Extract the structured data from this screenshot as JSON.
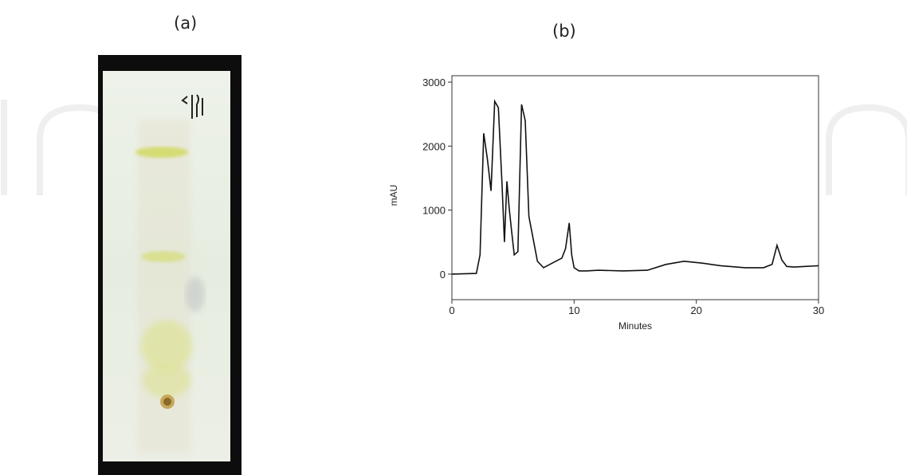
{
  "panels": {
    "a_label": "(a)",
    "b_label": "(b)"
  },
  "colors": {
    "plate_background": "#e9efe2",
    "band_yellow": "#d8e07c",
    "frame_black": "#0d0d0d",
    "trace": "#111111"
  },
  "chart_data": {
    "type": "line",
    "title": "",
    "xlabel": "Minutes",
    "ylabel": "mAU",
    "xlim": [
      0,
      30
    ],
    "ylim": [
      -400,
      3100
    ],
    "xticks": [
      0,
      10,
      20,
      30
    ],
    "yticks": [
      0,
      1000,
      2000,
      3000
    ],
    "grid": false,
    "series": [
      {
        "x": [
          0,
          2.0,
          2.3,
          2.6,
          2.9,
          3.2,
          3.5,
          3.8,
          4.1,
          4.3,
          4.5,
          4.7,
          4.9,
          5.1,
          5.4,
          5.7,
          6.0,
          6.3,
          6.6,
          7.0,
          7.5,
          8.0,
          8.5,
          9.0,
          9.3,
          9.6,
          9.8,
          10.0,
          10.4,
          11.0,
          12.0,
          14.0,
          16.0,
          17.5,
          19.0,
          20.5,
          22.0,
          24.0,
          25.5,
          26.2,
          26.6,
          27.0,
          27.4,
          28.0,
          30.0
        ],
        "y": [
          0,
          10,
          300,
          2200,
          1800,
          1300,
          2700,
          2600,
          1400,
          500,
          1450,
          1000,
          650,
          300,
          350,
          2650,
          2400,
          900,
          600,
          200,
          100,
          150,
          200,
          250,
          400,
          800,
          300,
          100,
          50,
          50,
          60,
          50,
          60,
          150,
          200,
          170,
          130,
          100,
          100,
          150,
          450,
          220,
          120,
          110,
          130
        ]
      }
    ]
  }
}
